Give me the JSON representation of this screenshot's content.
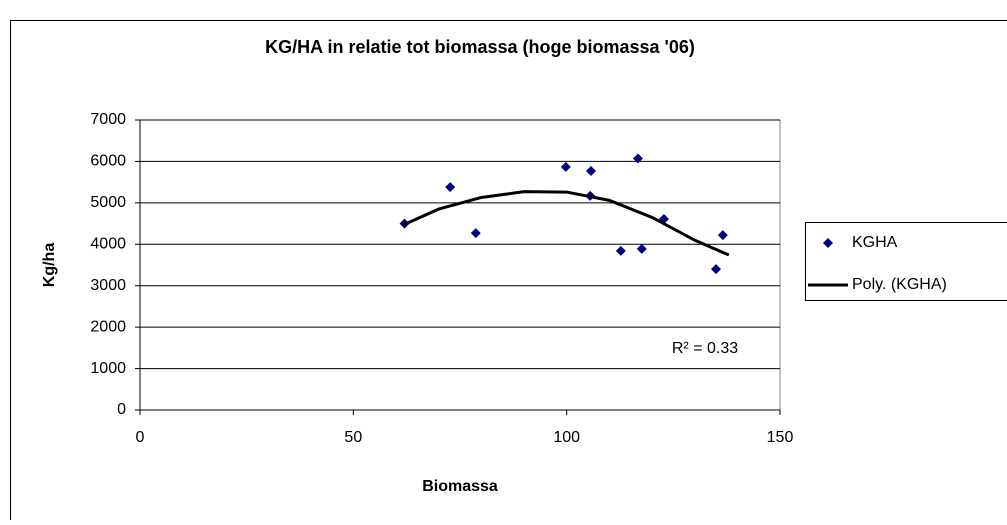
{
  "chart_data": {
    "type": "scatter",
    "title": "KG/HA in relatie tot biomassa (hoge biomassa '06)",
    "x_label": "Biomassa",
    "y_label": "Kg/ha",
    "annotation": "R² = 0.33",
    "xlim": [
      0,
      150
    ],
    "xticks": [
      0,
      50,
      100,
      150
    ],
    "ylim": [
      0,
      7000
    ],
    "yticks": [
      0,
      1000,
      2000,
      3000,
      4000,
      5000,
      6000,
      7000
    ],
    "grid": true,
    "legend": "right",
    "series": [
      {
        "name": "KGHA",
        "kind": "points",
        "color": "#000080",
        "x": [
          62,
          72.7,
          78.7,
          99.8,
          105.7,
          105.5,
          116.7,
          112.7,
          117.6,
          122.8,
          136.6,
          135
        ],
        "values": [
          4500,
          5380,
          4270,
          5870,
          5770,
          5170,
          6070,
          3840,
          3890,
          4610,
          4220,
          3400
        ]
      },
      {
        "name": "Poly. (KGHA)",
        "kind": "line",
        "color": "#000000",
        "x": [
          62,
          70,
          80,
          90,
          100,
          110,
          120,
          130,
          138
        ],
        "values": [
          4480,
          4850,
          5130,
          5270,
          5260,
          5060,
          4650,
          4100,
          3740
        ]
      }
    ]
  }
}
